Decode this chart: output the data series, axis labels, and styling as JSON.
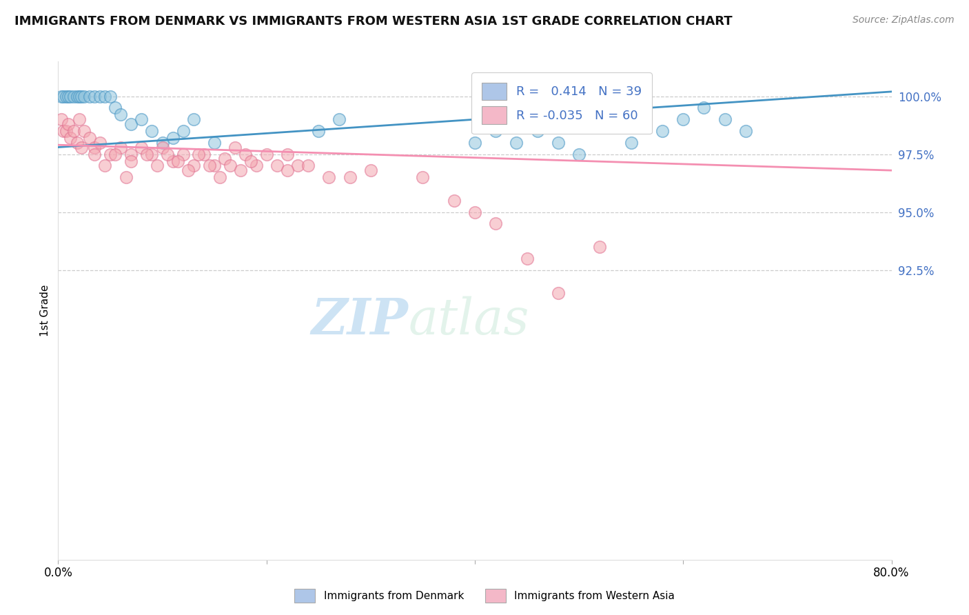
{
  "title": "IMMIGRANTS FROM DENMARK VS IMMIGRANTS FROM WESTERN ASIA 1ST GRADE CORRELATION CHART",
  "source": "Source: ZipAtlas.com",
  "ylabel": "1st Grade",
  "xlim": [
    0.0,
    80.0
  ],
  "ylim": [
    80.0,
    101.5
  ],
  "blue_R": 0.414,
  "blue_N": 39,
  "pink_R": -0.035,
  "pink_N": 60,
  "legend_label_blue": "Immigrants from Denmark",
  "legend_label_pink": "Immigrants from Western Asia",
  "blue_color": "#92c5de",
  "pink_color": "#f4a6b0",
  "blue_line_color": "#4393c3",
  "pink_line_color": "#f48fb1",
  "watermark_zip": "ZIP",
  "watermark_atlas": "atlas",
  "ytick_vals": [
    92.5,
    95.0,
    97.5,
    100.0
  ],
  "ytick_labels": [
    "92.5%",
    "95.0%",
    "97.5%",
    "100.0%"
  ],
  "blue_x": [
    0.3,
    0.5,
    0.8,
    1.0,
    1.2,
    1.5,
    1.8,
    2.0,
    2.2,
    2.5,
    3.0,
    3.5,
    4.0,
    4.5,
    5.0,
    5.5,
    6.0,
    7.0,
    8.0,
    9.0,
    10.0,
    11.0,
    12.0,
    13.0,
    15.0,
    25.0,
    27.0,
    40.0,
    42.0,
    44.0,
    46.0,
    48.0,
    50.0,
    55.0,
    58.0,
    60.0,
    62.0,
    64.0,
    66.0
  ],
  "blue_y": [
    100.0,
    100.0,
    100.0,
    100.0,
    100.0,
    100.0,
    100.0,
    100.0,
    100.0,
    100.0,
    100.0,
    100.0,
    100.0,
    100.0,
    100.0,
    99.5,
    99.2,
    98.8,
    99.0,
    98.5,
    98.0,
    98.2,
    98.5,
    99.0,
    98.0,
    98.5,
    99.0,
    98.0,
    98.5,
    98.0,
    98.5,
    98.0,
    97.5,
    98.0,
    98.5,
    99.0,
    99.5,
    99.0,
    98.5
  ],
  "pink_x": [
    0.3,
    0.5,
    0.8,
    1.0,
    1.2,
    1.5,
    1.8,
    2.0,
    2.2,
    2.5,
    3.0,
    3.5,
    4.0,
    5.0,
    6.0,
    7.0,
    8.0,
    9.0,
    10.0,
    11.0,
    12.0,
    13.0,
    14.0,
    15.0,
    16.0,
    17.0,
    18.0,
    19.0,
    20.0,
    21.0,
    22.0,
    23.0,
    7.0,
    8.5,
    9.5,
    10.5,
    11.5,
    12.5,
    13.5,
    14.5,
    15.5,
    16.5,
    17.5,
    18.5,
    3.5,
    4.5,
    5.5,
    6.5,
    22.0,
    24.0,
    26.0,
    28.0,
    30.0,
    35.0,
    38.0,
    40.0,
    42.0,
    45.0,
    48.0,
    52.0
  ],
  "pink_y": [
    99.0,
    98.5,
    98.5,
    98.8,
    98.2,
    98.5,
    98.0,
    99.0,
    97.8,
    98.5,
    98.2,
    97.8,
    98.0,
    97.5,
    97.8,
    97.5,
    97.8,
    97.5,
    97.8,
    97.2,
    97.5,
    97.0,
    97.5,
    97.0,
    97.3,
    97.8,
    97.5,
    97.0,
    97.5,
    97.0,
    97.5,
    97.0,
    97.2,
    97.5,
    97.0,
    97.5,
    97.2,
    96.8,
    97.5,
    97.0,
    96.5,
    97.0,
    96.8,
    97.2,
    97.5,
    97.0,
    97.5,
    96.5,
    96.8,
    97.0,
    96.5,
    96.5,
    96.8,
    96.5,
    95.5,
    95.0,
    94.5,
    93.0,
    91.5,
    93.5
  ],
  "blue_trendline": [
    [
      0,
      80
    ],
    [
      97.8,
      100.2
    ]
  ],
  "pink_trendline": [
    [
      0,
      80
    ],
    [
      97.9,
      96.8
    ]
  ]
}
